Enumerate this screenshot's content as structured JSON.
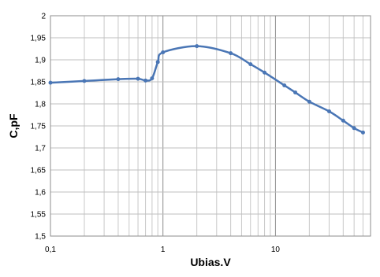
{
  "chart_data": {
    "type": "line",
    "xlabel": "Ubias.V",
    "ylabel": "C,pF",
    "x_scale": "log",
    "xlim": [
      0.1,
      70
    ],
    "ylim": [
      1.5,
      2.0
    ],
    "x_tick_labels": [
      "0,1",
      "1",
      "10"
    ],
    "y_tick_labels": [
      "1,5",
      "1,55",
      "1,6",
      "1,65",
      "1,7",
      "1,75",
      "1,8",
      "1,85",
      "1,9",
      "1,95",
      "2"
    ],
    "grid": true,
    "legend": "none",
    "series": [
      {
        "color": "#4a76b5",
        "points": [
          {
            "x": 0.1,
            "y": 1.848
          },
          {
            "x": 0.2,
            "y": 1.852
          },
          {
            "x": 0.4,
            "y": 1.856
          },
          {
            "x": 0.6,
            "y": 1.857
          },
          {
            "x": 0.7,
            "y": 1.853
          },
          {
            "x": 0.8,
            "y": 1.858
          },
          {
            "x": 0.9,
            "y": 1.895
          },
          {
            "x": 1.0,
            "y": 1.917
          },
          {
            "x": 2.0,
            "y": 1.931
          },
          {
            "x": 4.0,
            "y": 1.915
          },
          {
            "x": 6.0,
            "y": 1.89
          },
          {
            "x": 8.0,
            "y": 1.871
          },
          {
            "x": 12.0,
            "y": 1.842
          },
          {
            "x": 15.0,
            "y": 1.826
          },
          {
            "x": 20.0,
            "y": 1.805
          },
          {
            "x": 30.0,
            "y": 1.783
          },
          {
            "x": 40.0,
            "y": 1.762
          },
          {
            "x": 50.0,
            "y": 1.745
          },
          {
            "x": 60.0,
            "y": 1.735
          }
        ]
      }
    ]
  }
}
